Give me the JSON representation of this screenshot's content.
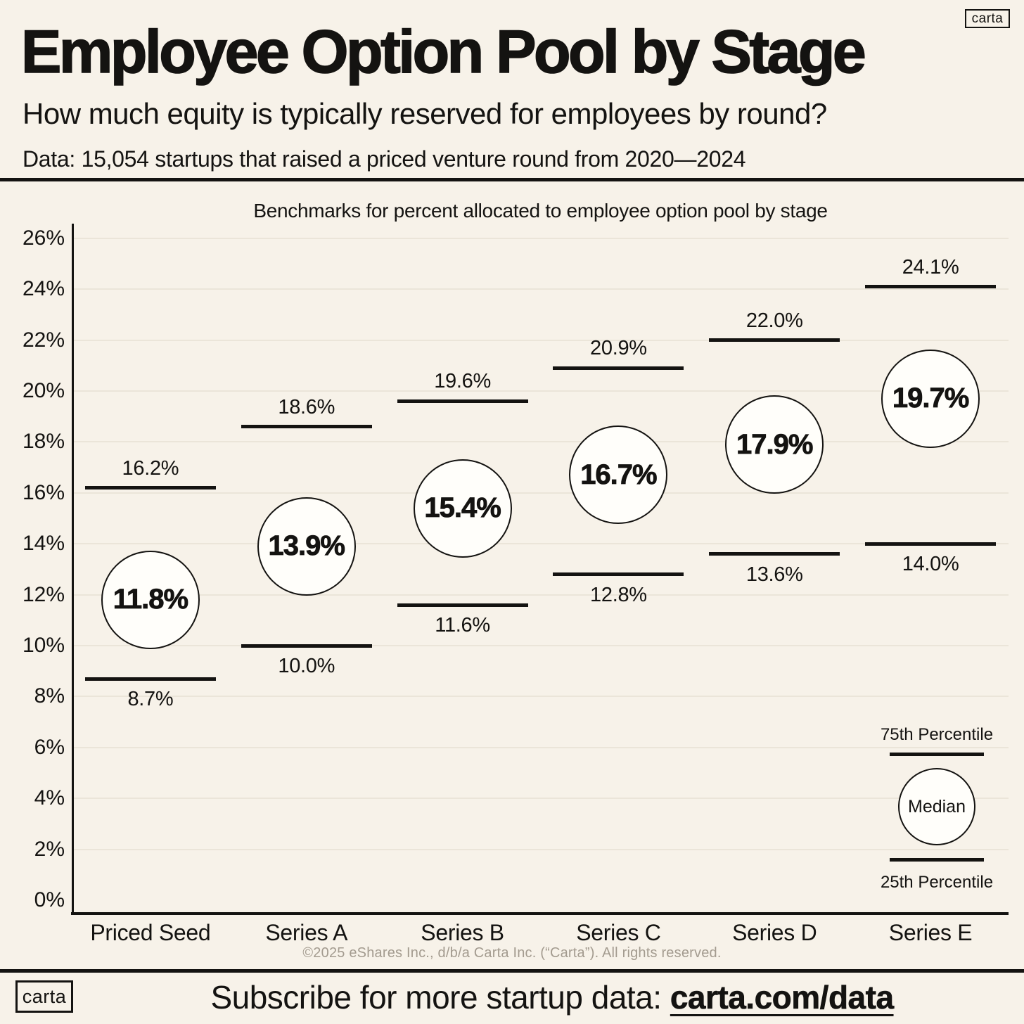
{
  "header": {
    "logo_text": "carta",
    "title": "Employee Option Pool by Stage",
    "subtitle": "How much equity is typically reserved for employees by round?",
    "data_note": "Data: 15,054 startups that raised a priced venture round from 2020—2024"
  },
  "chart_data": {
    "type": "scatter",
    "subtype": "percentile-range",
    "title": "Benchmarks for percent allocated to employee option pool by stage",
    "categories": [
      "Priced Seed",
      "Series A",
      "Series B",
      "Series C",
      "Series D",
      "Series E"
    ],
    "series": [
      {
        "name": "75th Percentile",
        "marker": "line",
        "values": [
          16.2,
          18.6,
          19.6,
          20.9,
          22.0,
          24.1
        ]
      },
      {
        "name": "Median",
        "marker": "circle",
        "values": [
          11.8,
          13.9,
          15.4,
          16.7,
          17.9,
          19.7
        ]
      },
      {
        "name": "25th Percentile",
        "marker": "line",
        "values": [
          8.7,
          10.0,
          11.6,
          12.8,
          13.6,
          14.0
        ]
      }
    ],
    "ylim": [
      0,
      26
    ],
    "yticks": [
      0,
      2,
      4,
      6,
      8,
      10,
      12,
      14,
      16,
      18,
      20,
      22,
      24,
      26
    ],
    "unit": "%",
    "grid": "horizontal",
    "legend_position": "bottom-right-inside"
  },
  "legend": {
    "p75_label": "75th Percentile",
    "median_label": "Median",
    "p25_label": "25th Percentile"
  },
  "footer": {
    "copyright": "©2025 eShares Inc., d/b/a Carta Inc. (“Carta”). All rights reserved.",
    "subscribe_prefix": "Subscribe for more startup data: ",
    "subscribe_link": "carta.com/data",
    "logo_text": "carta"
  },
  "colors": {
    "background": "#f7f2e9",
    "ink": "#141311",
    "grid": "#ebe5d9",
    "muted": "#a39b8f",
    "circle_fill": "#fffefa"
  }
}
